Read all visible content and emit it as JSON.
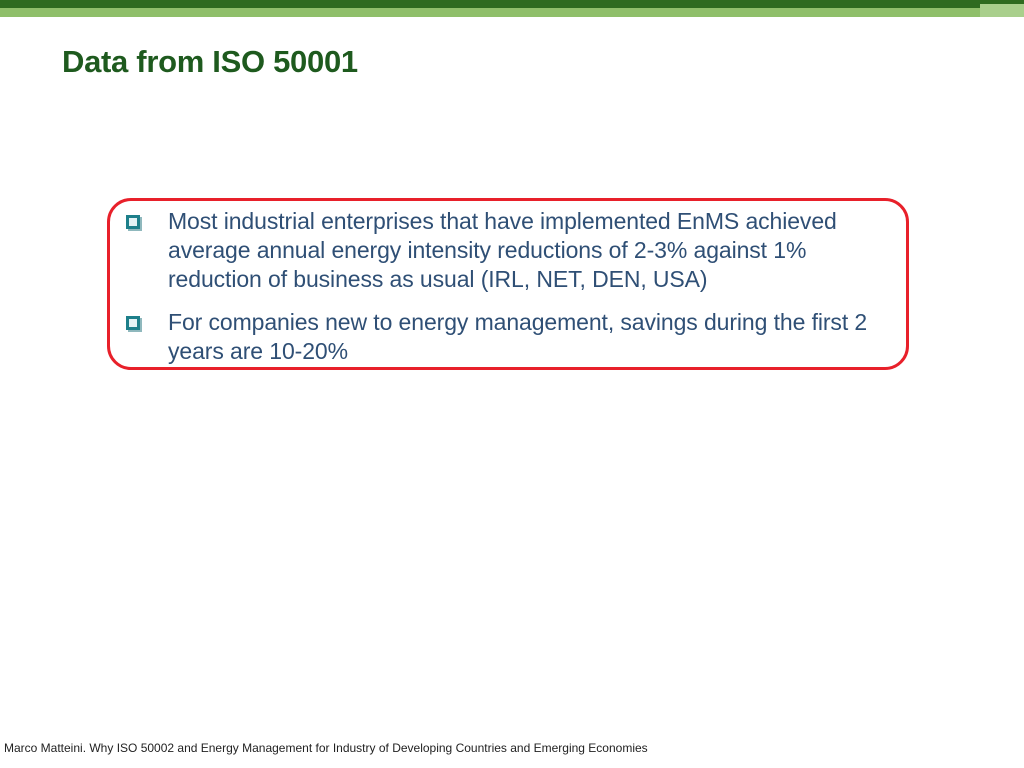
{
  "slide": {
    "title": "Data from ISO 50001",
    "bullets": [
      {
        "text": "Most industrial enterprises that have implemented EnMS achieved average annual energy intensity reductions of 2-3% against 1% reduction of business as usual (IRL, NET, DEN, USA)",
        "icon": "checkbox-bullet-icon"
      },
      {
        "text": "For companies new to energy management, savings during the first 2 years are 10-20%",
        "icon": "checkbox-bullet-icon"
      }
    ],
    "footer": "Marco Matteini. Why ISO 50002 and Energy Management for Industry of Developing Countries and Emerging Economies"
  },
  "colors": {
    "title": "#1e5a1e",
    "bar_dark": "#2e6b1f",
    "bar_light": "#8fbf6a",
    "callout_border": "#e8202a",
    "bullet_text": "#2f4f75",
    "bullet_icon": "#1d7f8a"
  }
}
